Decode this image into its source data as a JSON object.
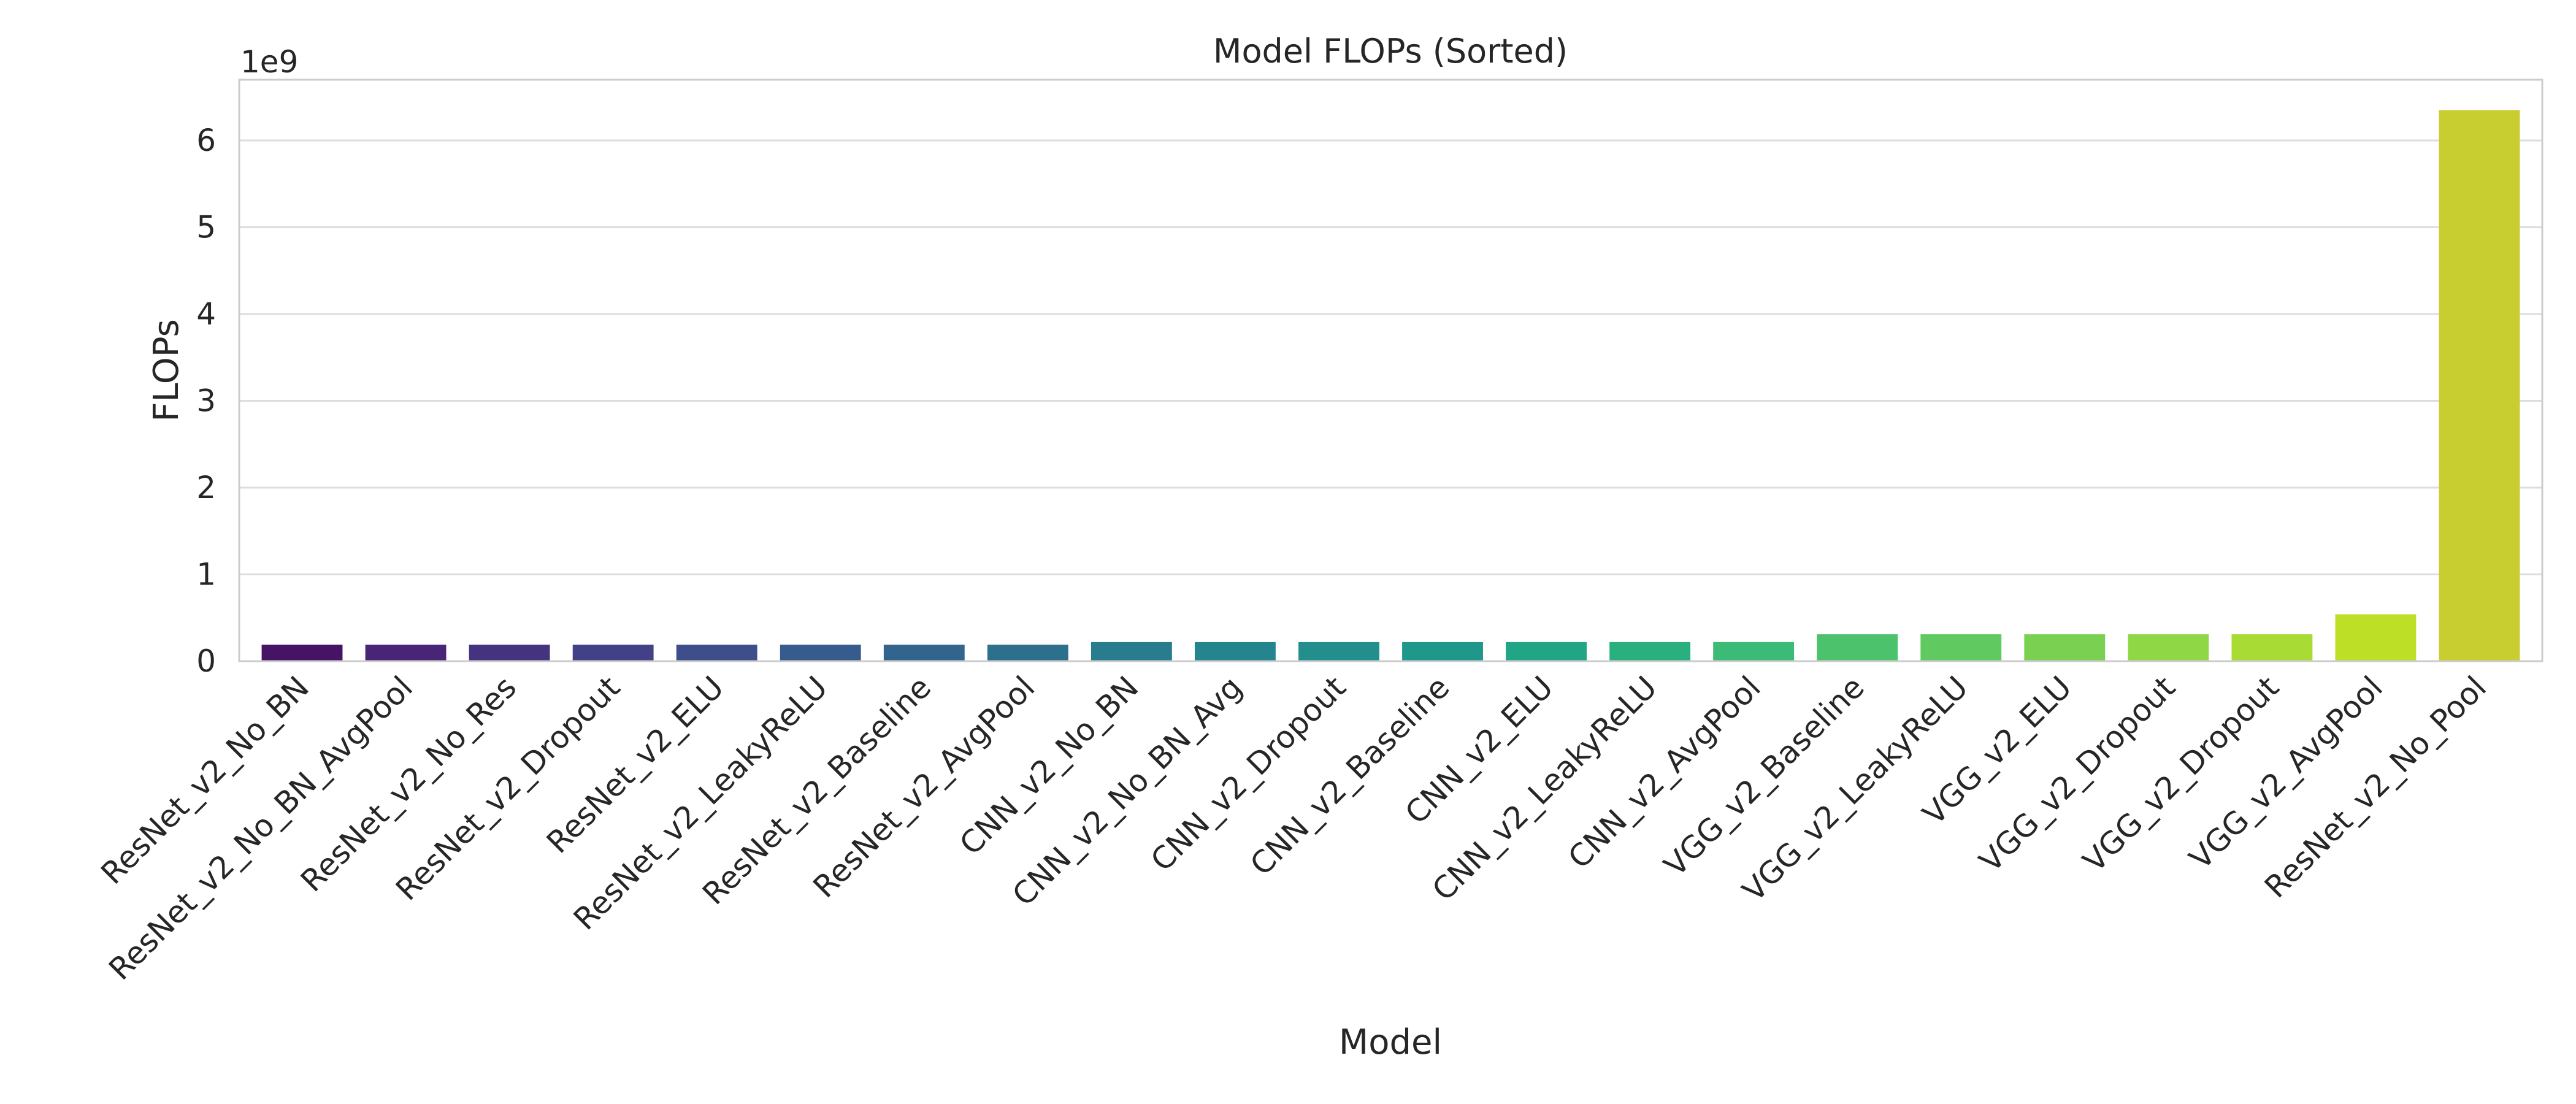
{
  "chart_data": {
    "type": "bar",
    "title": "Model FLOPs (Sorted)",
    "xlabel": "Model",
    "ylabel": "FLOPs",
    "y_offset_label": "1e9",
    "y_scale_factor": 1000000000,
    "ylim": [
      0,
      6.7
    ],
    "yticks": [
      0,
      1,
      2,
      3,
      4,
      5,
      6
    ],
    "grid": "horizontal",
    "categories": [
      "ResNet_v2_No_BN",
      "ResNet_v2_No_BN_AvgPool",
      "ResNet_v2_No_Res",
      "ResNet_v2_Dropout",
      "ResNet_v2_ELU",
      "ResNet_v2_LeakyReLU",
      "ResNet_v2_Baseline",
      "ResNet_v2_AvgPool",
      "CNN_v2_No_BN",
      "CNN_v2_No_BN_Avg",
      "CNN_v2_Dropout",
      "CNN_v2_Baseline",
      "CNN_v2_ELU",
      "CNN_v2_LeakyReLU",
      "CNN_v2_AvgPool",
      "VGG_v2_Baseline",
      "VGG_v2_LeakyReLU",
      "VGG_v2_ELU",
      "VGG_v2_Dropout",
      "VGG_v2_Dropout",
      "VGG_v2_AvgPool",
      "ResNet_v2_No_Pool"
    ],
    "values": [
      0.19,
      0.19,
      0.19,
      0.19,
      0.19,
      0.19,
      0.19,
      0.19,
      0.22,
      0.22,
      0.22,
      0.22,
      0.22,
      0.22,
      0.22,
      0.31,
      0.31,
      0.31,
      0.31,
      0.31,
      0.54,
      6.35
    ],
    "colors": [
      "#471365",
      "#482576",
      "#46337f",
      "#424086",
      "#3d4e8a",
      "#375b8d",
      "#32658e",
      "#2d708e",
      "#297b8e",
      "#25858e",
      "#228f8d",
      "#1f988b",
      "#21a685",
      "#2ab07f",
      "#3bbb75",
      "#4cc26c",
      "#60ca60",
      "#7ad151",
      "#8fd744",
      "#a8db34",
      "#bddf26",
      "#c8ce2f"
    ]
  }
}
